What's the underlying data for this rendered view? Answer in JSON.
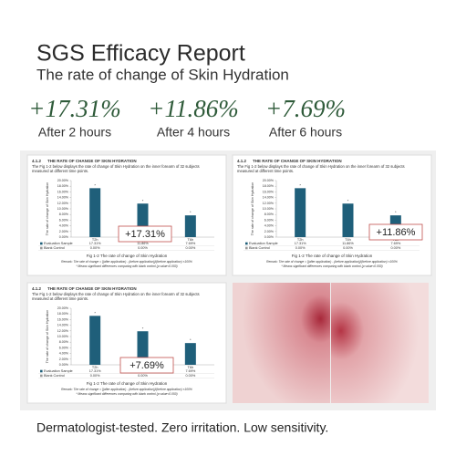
{
  "header": {
    "title": "SGS Efficacy Report",
    "subtitle": "The rate of change of Skin Hydration"
  },
  "stats": [
    {
      "value": "+17.31%",
      "label": "After 2 hours"
    },
    {
      "value": "+11.86%",
      "label": "After 4 hours"
    },
    {
      "value": "+7.69%",
      "label": "After 6 hours"
    }
  ],
  "figure": {
    "section": "4.1.2",
    "heading": "THE RATE OF CHANGE OF SKIN HYDRATION",
    "description": [
      "The Fig 1-2 below displays the rate of change of Skin Hydration on the inner forearm of 32 subjects",
      "measured at different time points."
    ],
    "y_label": "The rate of change of Skin Hydration",
    "categories": [
      "T2h",
      "T4h",
      "T6h"
    ],
    "values": [
      17.31,
      11.86,
      7.69
    ],
    "value_labels": [
      "17.31%",
      "11.86%",
      "7.69%"
    ],
    "significance": "*",
    "color": "#1f5f7a",
    "ylim": [
      0,
      20
    ],
    "yticks": [
      {
        "value": 0,
        "label": "0.00%"
      },
      {
        "value": 2,
        "label": "2.00%"
      },
      {
        "value": 4,
        "label": "4.00%"
      },
      {
        "value": 6,
        "label": "6.00%"
      },
      {
        "value": 8,
        "label": "8.00%"
      },
      {
        "value": 10,
        "label": "10.00%"
      },
      {
        "value": 12,
        "label": "12.00%"
      },
      {
        "value": 14,
        "label": "14.00%"
      },
      {
        "value": 16,
        "label": "16.00%"
      },
      {
        "value": 18,
        "label": "18.00%"
      },
      {
        "value": 20,
        "label": "20.00%"
      }
    ],
    "table": [
      {
        "name": "Evaluation Sample",
        "cells": [
          "17.31%",
          "11.86%",
          "7.69%"
        ]
      },
      {
        "name": "Blank Control",
        "cells": [
          "0.00%",
          "0.00%",
          "0.00%"
        ]
      }
    ],
    "caption": "Fig 1-2 The rate of change of Skin Hydration",
    "remark": "Remark: The rate of change = [(after application) - (before application)]/(before application) ×100%",
    "note": "* Means significant differences comparing with blank control (p value<0.050)"
  },
  "footer": "Dermatologist-tested. Zero irritation. Low sensitivity."
}
